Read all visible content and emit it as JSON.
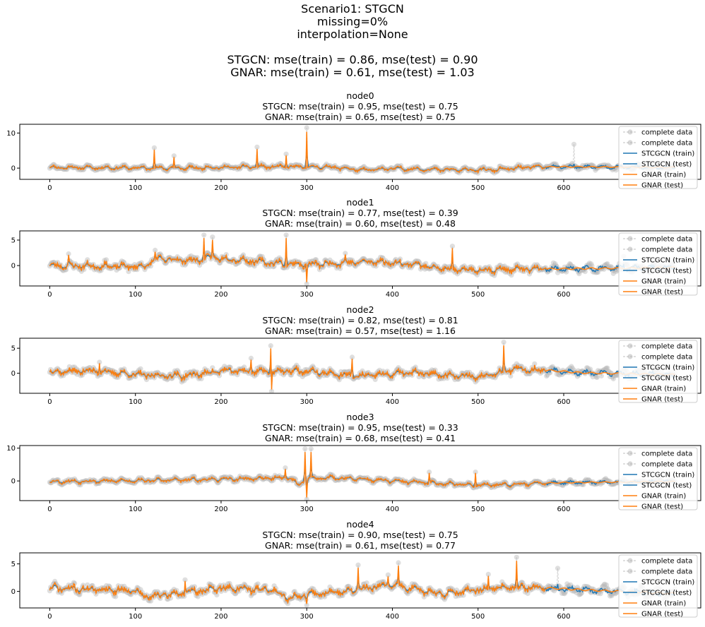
{
  "figure": {
    "suptitle": [
      "Scenario1: STGCN",
      "missing=0%",
      "interpolation=None",
      "",
      "STGCN: mse(train) = 0.86, mse(test) = 0.90",
      "GNAR: mse(train) = 0.61, mse(test) = 1.03"
    ]
  },
  "colors": {
    "complete": "#b7b7b7",
    "stgcn": "#1f77b4",
    "gnar": "#ff7f0e",
    "axis": "#000000",
    "background": "#ffffff"
  },
  "chart_data": [
    {
      "type": "line",
      "title": [
        "node0",
        "STGCN: mse(train) = 0.95, mse(test) = 0.75",
        "GNAR: mse(train) = 0.65, mse(test) = 0.75"
      ],
      "xlim": [
        -35,
        760
      ],
      "ylim": [
        -3.2,
        12.5
      ],
      "xticks": [
        0,
        100,
        200,
        300,
        400,
        500,
        600
      ],
      "yticks": [
        0,
        10
      ],
      "legend": [
        "complete data",
        "complete data",
        "STCGCN (train)",
        "STCGCN (test)",
        "GNAR (train)",
        "GNAR (test)"
      ],
      "legend_loc": "right",
      "train_end": 580,
      "series_end": 730,
      "seed": 11,
      "noise": 0.45,
      "baseline": [
        [
          0,
          0.2
        ],
        [
          150,
          0.0
        ],
        [
          250,
          0.4
        ],
        [
          330,
          0.3
        ],
        [
          365,
          -0.6
        ],
        [
          400,
          -0.1
        ],
        [
          470,
          -0.5
        ],
        [
          520,
          -0.5
        ],
        [
          560,
          0.3
        ],
        [
          600,
          0.4
        ],
        [
          730,
          0.2
        ]
      ],
      "spikes": [
        [
          122,
          5.8
        ],
        [
          145,
          3.5
        ],
        [
          242,
          6.0
        ],
        [
          276,
          4.0
        ],
        [
          300,
          11.5
        ],
        [
          612,
          6.8
        ]
      ]
    },
    {
      "type": "line",
      "title": [
        "node1",
        "STGCN: mse(train) = 0.77, mse(test) = 0.39",
        "GNAR: mse(train) = 0.60, mse(test) = 0.48"
      ],
      "xlim": [
        -35,
        760
      ],
      "ylim": [
        -4.0,
        6.8
      ],
      "xticks": [
        0,
        100,
        200,
        300,
        400,
        500,
        600
      ],
      "yticks": [
        0,
        5
      ],
      "legend": [
        "complete data",
        "complete data",
        "STCGCN (train)",
        "STCGCN (test)",
        "GNAR (train)",
        "GNAR (test)"
      ],
      "legend_loc": "right",
      "train_end": 580,
      "series_end": 730,
      "seed": 23,
      "noise": 0.6,
      "baseline": [
        [
          0,
          0.0
        ],
        [
          110,
          -0.2
        ],
        [
          125,
          1.3
        ],
        [
          170,
          1.0
        ],
        [
          190,
          1.6
        ],
        [
          260,
          0.5
        ],
        [
          300,
          0.2
        ],
        [
          380,
          0.8
        ],
        [
          430,
          0.2
        ],
        [
          470,
          -0.9
        ],
        [
          560,
          -0.7
        ],
        [
          730,
          -0.4
        ]
      ],
      "spikes": [
        [
          22,
          2.3
        ],
        [
          123,
          3.0
        ],
        [
          180,
          6.0
        ],
        [
          190,
          5.6
        ],
        [
          276,
          6.0
        ],
        [
          300,
          -3.6
        ],
        [
          345,
          2.4
        ],
        [
          470,
          3.8
        ],
        [
          670,
          1.8
        ]
      ]
    },
    {
      "type": "line",
      "title": [
        "node2",
        "STGCN: mse(train) = 0.82, mse(test) = 0.81",
        "GNAR: mse(train) = 0.57, mse(test) = 1.16"
      ],
      "xlim": [
        -35,
        760
      ],
      "ylim": [
        -4.0,
        7.0
      ],
      "xticks": [
        0,
        100,
        200,
        300,
        400,
        500,
        600
      ],
      "yticks": [
        0,
        5
      ],
      "legend": [
        "complete data",
        "complete data",
        "STCGCN (train)",
        "STCGCN (test)",
        "GNAR (train)",
        "GNAR (test)"
      ],
      "legend_loc": "right",
      "train_end": 580,
      "series_end": 730,
      "seed": 37,
      "noise": 0.65,
      "baseline": [
        [
          0,
          0.3
        ],
        [
          50,
          0.5
        ],
        [
          110,
          -0.4
        ],
        [
          160,
          -0.5
        ],
        [
          200,
          0.5
        ],
        [
          260,
          0.4
        ],
        [
          300,
          0.4
        ],
        [
          360,
          -0.6
        ],
        [
          420,
          0.1
        ],
        [
          500,
          -0.7
        ],
        [
          540,
          0.8
        ],
        [
          580,
          0.6
        ],
        [
          620,
          0.1
        ],
        [
          730,
          -0.3
        ]
      ],
      "spikes": [
        [
          58,
          2.2
        ],
        [
          235,
          3.0
        ],
        [
          258,
          5.5
        ],
        [
          259,
          -3.6
        ],
        [
          353,
          3.2
        ],
        [
          530,
          6.2
        ]
      ]
    },
    {
      "type": "line",
      "title": [
        "node3",
        "STGCN: mse(train) = 0.95, mse(test) = 0.33",
        "GNAR: mse(train) = 0.68, mse(test) = 0.41"
      ],
      "xlim": [
        -35,
        760
      ],
      "ylim": [
        -6.0,
        10.8
      ],
      "xticks": [
        0,
        100,
        200,
        300,
        400,
        500,
        600
      ],
      "yticks": [
        0,
        10
      ],
      "legend": [
        "complete data",
        "complete data",
        "STCGCN (train)",
        "STCGCN (test)",
        "GNAR (train)",
        "GNAR (test)"
      ],
      "legend_loc": "right",
      "train_end": 580,
      "series_end": 730,
      "seed": 53,
      "noise": 0.5,
      "baseline": [
        [
          0,
          -0.2
        ],
        [
          100,
          0.1
        ],
        [
          200,
          0.5
        ],
        [
          280,
          1.0
        ],
        [
          290,
          -1.3
        ],
        [
          300,
          0.8
        ],
        [
          330,
          1.0
        ],
        [
          420,
          -0.3
        ],
        [
          500,
          -1.3
        ],
        [
          600,
          -0.5
        ],
        [
          730,
          -0.2
        ]
      ],
      "spikes": [
        [
          275,
          4.0
        ],
        [
          298,
          9.8
        ],
        [
          300,
          -5.6
        ],
        [
          305,
          9.8
        ],
        [
          443,
          2.7
        ],
        [
          497,
          2.7
        ]
      ]
    },
    {
      "type": "line",
      "title": [
        "node4",
        "STGCN: mse(train) = 0.90, mse(test) = 0.75",
        "GNAR: mse(train) = 0.61, mse(test) = 0.77"
      ],
      "xlim": [
        -35,
        760
      ],
      "ylim": [
        -3.0,
        7.0
      ],
      "xticks": [
        0,
        100,
        200,
        300,
        400,
        500,
        600
      ],
      "yticks": [
        0,
        5
      ],
      "legend": [
        "complete data",
        "complete data",
        "STCGCN (train)",
        "STCGCN (test)",
        "GNAR (train)",
        "GNAR (test)"
      ],
      "legend_loc": "right",
      "train_end": 580,
      "series_end": 730,
      "seed": 71,
      "noise": 0.65,
      "baseline": [
        [
          0,
          0.6
        ],
        [
          100,
          0.2
        ],
        [
          110,
          -1.0
        ],
        [
          150,
          -0.4
        ],
        [
          200,
          0.6
        ],
        [
          260,
          0.3
        ],
        [
          280,
          -1.2
        ],
        [
          300,
          -0.6
        ],
        [
          350,
          0.1
        ],
        [
          400,
          1.2
        ],
        [
          460,
          -0.5
        ],
        [
          520,
          0.6
        ],
        [
          560,
          0.8
        ],
        [
          620,
          0.3
        ],
        [
          730,
          -0.4
        ]
      ],
      "spikes": [
        [
          158,
          2.1
        ],
        [
          300,
          -2.5
        ],
        [
          360,
          4.8
        ],
        [
          395,
          3.0
        ],
        [
          407,
          5.2
        ],
        [
          512,
          3.1
        ],
        [
          545,
          6.2
        ],
        [
          593,
          4.2
        ]
      ]
    }
  ]
}
